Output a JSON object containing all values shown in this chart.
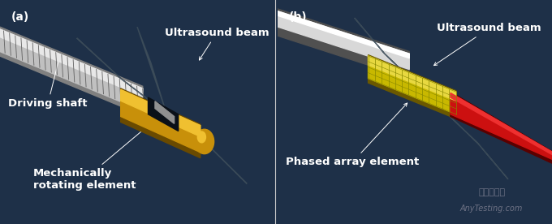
{
  "bg_color": "#1e3048",
  "panel_bg": "#1a2d42",
  "label_color": "#ffffff",
  "label_fontsize": 10,
  "annotation_fontsize": 9.5,
  "annotation_fontweight": "bold",
  "panel_a_label": "(a)",
  "panel_b_label": "(b)",
  "watermark_line1": "嘉峨检测网",
  "watermark_line2": "AnyTesting.com",
  "watermark_color": "#888899",
  "watermark_fontsize": 8,
  "shaft_color": "#c0c0c0",
  "shaft_highlight": "#e8e8e8",
  "shaft_shadow": "#808080",
  "gold_color": "#c8900a",
  "gold_highlight": "#f0c030",
  "gold_shadow": "#6a4a00",
  "ball_color": "#c8900a",
  "beam_color": "#3d4d5a",
  "red_color": "#cc1010",
  "red_highlight": "#ee3030",
  "yellow_color": "#c8b800",
  "yellow_highlight": "#e8d840",
  "white_catheter": "#d8d8d8",
  "white_highlight": "#ffffff",
  "divider_color": "#cccccc"
}
